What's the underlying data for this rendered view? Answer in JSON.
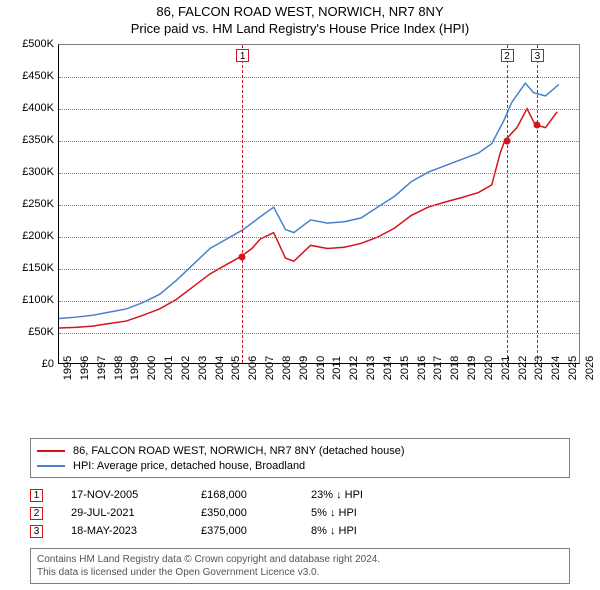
{
  "title": {
    "line1": "86, FALCON ROAD WEST, NORWICH, NR7 8NY",
    "line2": "Price paid vs. HM Land Registry's House Price Index (HPI)"
  },
  "chart": {
    "type": "line",
    "background_color": "#ffffff",
    "grid_color": "#808080",
    "x_min": 1995,
    "x_max": 2026,
    "x_ticks": [
      1995,
      1996,
      1997,
      1998,
      1999,
      2000,
      2001,
      2002,
      2003,
      2004,
      2005,
      2006,
      2007,
      2008,
      2009,
      2010,
      2011,
      2012,
      2013,
      2014,
      2015,
      2016,
      2017,
      2018,
      2019,
      2020,
      2021,
      2022,
      2023,
      2024,
      2025,
      2026
    ],
    "y_min": 0,
    "y_max": 500000,
    "y_ticks": [
      0,
      50000,
      100000,
      150000,
      200000,
      250000,
      300000,
      350000,
      400000,
      450000,
      500000
    ],
    "y_tick_labels": [
      "£0",
      "£50K",
      "£100K",
      "£150K",
      "£200K",
      "£250K",
      "£300K",
      "£350K",
      "£400K",
      "£450K",
      "£500K"
    ],
    "hpi_color": "#4a7fce",
    "price_color": "#d4141b",
    "line_width": 1.5,
    "hpi_series": [
      [
        1995,
        70000
      ],
      [
        1996,
        72000
      ],
      [
        1997,
        75000
      ],
      [
        1998,
        80000
      ],
      [
        1999,
        85000
      ],
      [
        2000,
        95000
      ],
      [
        2001,
        108000
      ],
      [
        2002,
        130000
      ],
      [
        2003,
        155000
      ],
      [
        2004,
        180000
      ],
      [
        2005,
        195000
      ],
      [
        2006,
        210000
      ],
      [
        2007,
        230000
      ],
      [
        2007.8,
        245000
      ],
      [
        2008.5,
        210000
      ],
      [
        2009,
        205000
      ],
      [
        2010,
        225000
      ],
      [
        2011,
        220000
      ],
      [
        2012,
        222000
      ],
      [
        2013,
        228000
      ],
      [
        2014,
        245000
      ],
      [
        2015,
        262000
      ],
      [
        2016,
        285000
      ],
      [
        2017,
        300000
      ],
      [
        2018,
        310000
      ],
      [
        2019,
        320000
      ],
      [
        2020,
        330000
      ],
      [
        2020.8,
        345000
      ],
      [
        2021.5,
        380000
      ],
      [
        2022,
        410000
      ],
      [
        2022.8,
        440000
      ],
      [
        2023.3,
        425000
      ],
      [
        2024,
        420000
      ],
      [
        2024.8,
        438000
      ]
    ],
    "price_series": [
      [
        1995,
        55000
      ],
      [
        1996,
        56000
      ],
      [
        1997,
        58000
      ],
      [
        1998,
        62000
      ],
      [
        1999,
        66000
      ],
      [
        2000,
        75000
      ],
      [
        2001,
        85000
      ],
      [
        2002,
        100000
      ],
      [
        2003,
        120000
      ],
      [
        2004,
        140000
      ],
      [
        2005,
        155000
      ],
      [
        2005.88,
        168000
      ],
      [
        2006.5,
        180000
      ],
      [
        2007,
        195000
      ],
      [
        2007.8,
        205000
      ],
      [
        2008.5,
        165000
      ],
      [
        2009,
        160000
      ],
      [
        2010,
        185000
      ],
      [
        2011,
        180000
      ],
      [
        2012,
        182000
      ],
      [
        2013,
        188000
      ],
      [
        2014,
        198000
      ],
      [
        2015,
        212000
      ],
      [
        2016,
        232000
      ],
      [
        2017,
        245000
      ],
      [
        2018,
        253000
      ],
      [
        2019,
        260000
      ],
      [
        2020,
        268000
      ],
      [
        2020.8,
        280000
      ],
      [
        2021.3,
        330000
      ],
      [
        2021.58,
        350000
      ],
      [
        2022.3,
        370000
      ],
      [
        2022.9,
        400000
      ],
      [
        2023.38,
        375000
      ],
      [
        2024,
        370000
      ],
      [
        2024.7,
        395000
      ]
    ],
    "sale_markers": [
      {
        "n": "1",
        "x": 2005.88,
        "y": 168000,
        "color": "#d4141b"
      },
      {
        "n": "2",
        "x": 2021.58,
        "y": 350000,
        "color": "#d4141b"
      },
      {
        "n": "3",
        "x": 2023.38,
        "y": 375000,
        "color": "#d4141b"
      }
    ]
  },
  "legend": {
    "items": [
      {
        "color": "#d4141b",
        "label": "86, FALCON ROAD WEST, NORWICH, NR7 8NY (detached house)"
      },
      {
        "color": "#4a7fce",
        "label": "HPI: Average price, detached house, Broadland"
      }
    ]
  },
  "sales": [
    {
      "n": "1",
      "color": "#d4141b",
      "date": "17-NOV-2005",
      "price": "£168,000",
      "delta": "23% ↓ HPI"
    },
    {
      "n": "2",
      "color": "#d4141b",
      "date": "29-JUL-2021",
      "price": "£350,000",
      "delta": "5% ↓ HPI"
    },
    {
      "n": "3",
      "color": "#d4141b",
      "date": "18-MAY-2023",
      "price": "£375,000",
      "delta": "8% ↓ HPI"
    }
  ],
  "footer": {
    "line1": "Contains HM Land Registry data © Crown copyright and database right 2024.",
    "line2": "This data is licensed under the Open Government Licence v3.0."
  }
}
